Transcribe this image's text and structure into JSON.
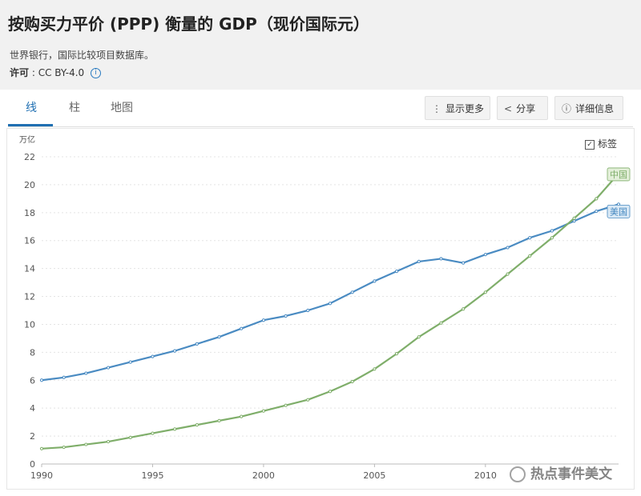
{
  "header": {
    "title": "按购买力平价 (PPP) 衡量的 GDP（现价国际元）",
    "source": "世界银行，国际比较项目数据库。",
    "license_label": "许可",
    "license_value": ": CC BY-4.0"
  },
  "tabs": [
    {
      "label": "线"
    },
    {
      "label": "柱"
    },
    {
      "label": "地图"
    }
  ],
  "toolbar": {
    "more_label": "显示更多",
    "share_label": "分享",
    "details_label": "详细信息"
  },
  "legend": {
    "checkbox_label": "标签"
  },
  "watermark": "热点事件美文",
  "colors": {
    "usa": "#4a8bc2",
    "china": "#7fae6a",
    "active_tab": "#1f6fb2"
  },
  "chart_data": {
    "type": "line",
    "ylabel": "万亿",
    "ylim": [
      0,
      22
    ],
    "yticks": [
      "0",
      "2",
      "4",
      "6",
      "8",
      "10",
      "12",
      "14",
      "16",
      "18",
      "20",
      "22"
    ],
    "xlim": [
      1990,
      2016
    ],
    "xticks": [
      "1990",
      "1995",
      "2000",
      "2005",
      "2010"
    ],
    "grid": true,
    "x": [
      1990,
      1991,
      1992,
      1993,
      1994,
      1995,
      1996,
      1997,
      1998,
      1999,
      2000,
      2001,
      2002,
      2003,
      2004,
      2005,
      2006,
      2007,
      2008,
      2009,
      2010,
      2011,
      2012,
      2013,
      2014,
      2015,
      2016
    ],
    "series": [
      {
        "name": "美国",
        "values": [
          6.0,
          6.2,
          6.5,
          6.9,
          7.3,
          7.7,
          8.1,
          8.6,
          9.1,
          9.7,
          10.3,
          10.6,
          11.0,
          11.5,
          12.3,
          13.1,
          13.8,
          14.5,
          14.7,
          14.4,
          15.0,
          15.5,
          16.2,
          16.7,
          17.4,
          18.1,
          18.6
        ]
      },
      {
        "name": "中国",
        "values": [
          1.1,
          1.2,
          1.4,
          1.6,
          1.9,
          2.2,
          2.5,
          2.8,
          3.1,
          3.4,
          3.8,
          4.2,
          4.6,
          5.2,
          5.9,
          6.8,
          7.9,
          9.1,
          10.1,
          11.1,
          12.3,
          13.6,
          14.9,
          16.2,
          17.6,
          19.0,
          20.8
        ]
      }
    ]
  }
}
